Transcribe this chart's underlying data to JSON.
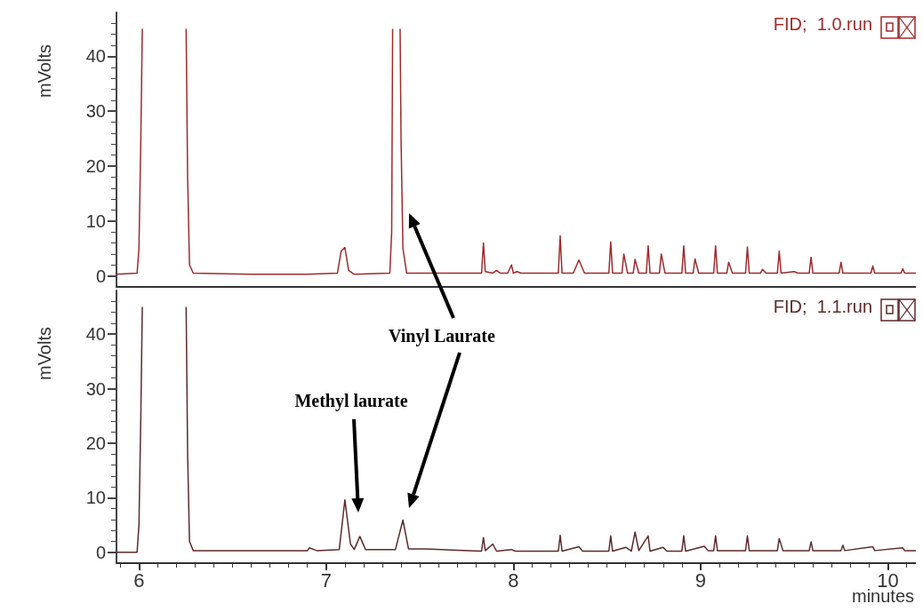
{
  "chart_data": [
    {
      "type": "line",
      "ylabel": "mVolts",
      "xlim": [
        5.88,
        10.15
      ],
      "ylim": [
        -2,
        48
      ],
      "yticks": [
        0,
        10,
        20,
        30,
        40
      ],
      "tick_labels": "y",
      "legend": "top right",
      "grid": false,
      "series": [
        {
          "name": "FID;  1.0.run",
          "color": "#9e2a2b",
          "x": [
            5.88,
            5.99,
            6.0,
            6.01,
            6.018,
            6.02,
            6.25,
            6.252,
            6.26,
            6.27,
            6.29,
            6.6,
            6.9,
            7.06,
            7.08,
            7.1,
            7.12,
            7.15,
            7.34,
            7.35,
            7.355,
            7.36,
            7.39,
            7.395,
            7.4,
            7.41,
            7.43,
            7.5,
            7.83,
            7.84,
            7.85,
            7.89,
            7.91,
            7.93,
            7.97,
            7.99,
            8.0,
            8.02,
            8.04,
            8.24,
            8.25,
            8.26,
            8.32,
            8.35,
            8.38,
            8.51,
            8.52,
            8.53,
            8.58,
            8.59,
            8.61,
            8.64,
            8.65,
            8.67,
            8.71,
            8.72,
            8.73,
            8.78,
            8.79,
            8.81,
            8.9,
            8.91,
            8.92,
            8.96,
            8.97,
            8.99,
            9.07,
            9.08,
            9.09,
            9.14,
            9.15,
            9.17,
            9.24,
            9.25,
            9.26,
            9.32,
            9.33,
            9.35,
            9.41,
            9.42,
            9.43,
            9.5,
            9.52,
            9.58,
            9.59,
            9.6,
            9.74,
            9.75,
            9.76,
            9.91,
            9.92,
            9.93,
            10.07,
            10.08,
            10.09,
            10.15
          ],
          "values": [
            0.3,
            0.5,
            5,
            25,
            45,
            null,
            null,
            45,
            18,
            2,
            0.5,
            0.3,
            0.3,
            0.5,
            4.5,
            5.2,
            1,
            0.3,
            0.5,
            8,
            45,
            null,
            null,
            45,
            25,
            5,
            0.5,
            0.5,
            0.5,
            6,
            0.8,
            0.5,
            1,
            0.5,
            0.5,
            2,
            0.5,
            0.8,
            0.5,
            0.5,
            7.3,
            0.5,
            0.5,
            2.9,
            0.5,
            0.5,
            6.2,
            0.5,
            0.5,
            4,
            0.5,
            0.5,
            3,
            0.5,
            0.5,
            5.5,
            0.5,
            0.5,
            4,
            0.5,
            0.5,
            5.5,
            0.5,
            0.5,
            3.1,
            0.5,
            0.5,
            5.5,
            0.5,
            0.5,
            2.5,
            0.5,
            0.5,
            5.3,
            0.5,
            0.5,
            1.2,
            0.5,
            0.5,
            4.5,
            0.5,
            0.8,
            0.5,
            0.5,
            3.4,
            0.5,
            0.5,
            2.5,
            0.5,
            0.5,
            1.8,
            0.5,
            0.5,
            1.3,
            0.5,
            0.5
          ]
        }
      ]
    },
    {
      "type": "line",
      "ylabel": "mVolts",
      "xlabel": "minutes",
      "xlim": [
        5.88,
        10.15
      ],
      "ylim": [
        -2,
        48
      ],
      "xticks": [
        6,
        7,
        8,
        9,
        10
      ],
      "yticks": [
        0,
        10,
        20,
        30,
        40
      ],
      "legend": "top right",
      "grid": false,
      "annotations": [
        "Vinyl Laurate",
        "Methyl laurate"
      ],
      "series": [
        {
          "name": "FID;  1.1.run",
          "color": "#5c2a2a",
          "x": [
            5.88,
            5.99,
            6.0,
            6.01,
            6.018,
            6.02,
            6.25,
            6.252,
            6.26,
            6.27,
            6.29,
            6.9,
            6.91,
            6.95,
            7.07,
            7.1,
            7.13,
            7.15,
            7.18,
            7.21,
            7.37,
            7.41,
            7.44,
            7.53,
            7.83,
            7.84,
            7.85,
            7.89,
            7.91,
            7.99,
            8.01,
            8.24,
            8.25,
            8.26,
            8.35,
            8.37,
            8.51,
            8.52,
            8.53,
            8.6,
            8.63,
            8.65,
            8.67,
            8.72,
            8.73,
            8.8,
            8.82,
            8.9,
            8.91,
            8.92,
            9.02,
            9.04,
            9.07,
            9.08,
            9.09,
            9.24,
            9.25,
            9.26,
            9.41,
            9.42,
            9.44,
            9.58,
            9.59,
            9.6,
            9.75,
            9.76,
            9.77,
            9.92,
            9.93,
            10.08,
            10.09,
            10.15
          ],
          "values": [
            0,
            0,
            5,
            25,
            45,
            null,
            null,
            45,
            18,
            2,
            0.3,
            0.3,
            0.8,
            0.3,
            0.5,
            9.6,
            1.5,
            0.5,
            2.9,
            0.5,
            0.5,
            5.9,
            0.6,
            0.6,
            0.2,
            2.7,
            0.3,
            1.5,
            0.2,
            0.5,
            0.2,
            0.2,
            3.1,
            0.2,
            1,
            0.2,
            0.2,
            3,
            0.2,
            0.9,
            0.2,
            3.7,
            0.3,
            3,
            0.2,
            0.9,
            0.2,
            0.2,
            3,
            0.2,
            1.1,
            0.3,
            0.3,
            3,
            0.3,
            0.3,
            3,
            0.3,
            0.3,
            2.5,
            0.3,
            0.3,
            1.9,
            0.3,
            0.3,
            1.3,
            0.3,
            1,
            0.3,
            0.8,
            0.3,
            0.3
          ]
        }
      ]
    }
  ]
}
